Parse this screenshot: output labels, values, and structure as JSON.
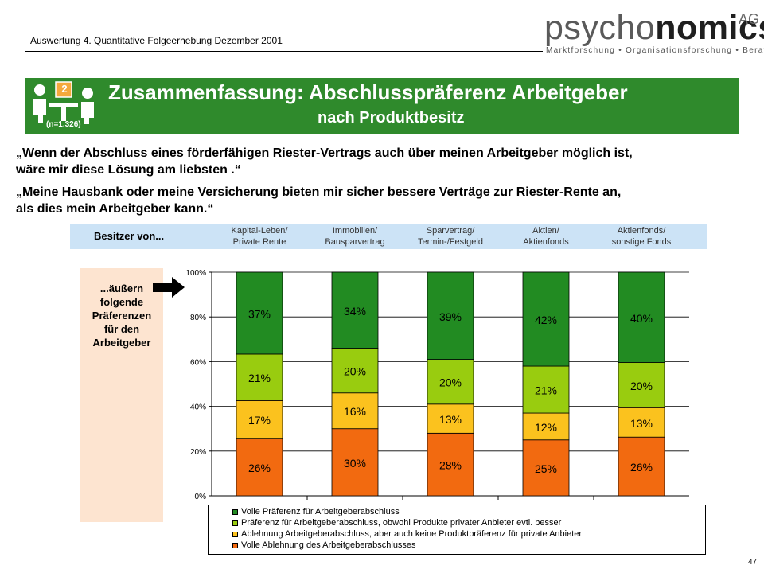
{
  "header": {
    "text": "Auswertung 4. Quantitative Folgeerhebung Dezember 2001"
  },
  "logo": {
    "word_a": "psycho",
    "word_b": "nomics",
    "ag": "AG",
    "tagline": "Marktforschung • Organisationsforschung • Beratung"
  },
  "banner": {
    "title": "Zusammenfassung: Abschlusspräferenz Arbeitgeber",
    "subtitle": "nach Produktbesitz",
    "icon_number": "2",
    "n_label": "(n=1.326)",
    "icon": "meeting-people-icon",
    "color": "#2f8a2c"
  },
  "quotes": [
    {
      "line1": "„Wenn der Abschluss eines förderfähigen Riester-Vertrags auch über meinen Arbeitgeber möglich ist,",
      "line2": "wäre mir diese Lösung am liebsten .“"
    },
    {
      "line1": "„Meine Hausbank oder meine Versicherung bieten mir sicher bessere Verträge zur Riester-Rente an,",
      "line2": "als dies mein Arbeitgeber kann.“"
    }
  ],
  "category_row": {
    "label": "Besitzer von..."
  },
  "side_box": {
    "lines": [
      "...äußern",
      "folgende",
      "Präferenzen",
      "für den",
      "Arbeitgeber"
    ],
    "arrow_icon": "arrow-right-icon"
  },
  "chart_data": {
    "type": "bar",
    "stacked": true,
    "percent_stacked": true,
    "categories": [
      [
        "Kapital-Leben/",
        "Private Rente"
      ],
      [
        "Immobilien/",
        "Bausparvertrag"
      ],
      [
        "Sparvertrag/",
        "Termin-/Festgeld"
      ],
      [
        "Aktien/",
        "Aktienfonds"
      ],
      [
        "Aktienfonds/",
        "sonstige Fonds"
      ]
    ],
    "series": [
      {
        "name": "Volle Ablehnung des Arbeitgeberabschlusses",
        "color": "#f26a10",
        "values": [
          26,
          30,
          28,
          25,
          26
        ]
      },
      {
        "name": "Ablehnung Arbeitgeberabschluss, aber auch keine Produktpräferenz für private Anbieter",
        "color": "#fbc21e",
        "values": [
          17,
          16,
          13,
          12,
          13
        ]
      },
      {
        "name": "Präferenz für Arbeitgeberabschluss, obwohl Produkte privater Anbieter evtl. besser",
        "color": "#99cc0f",
        "values": [
          21,
          20,
          20,
          21,
          20
        ]
      },
      {
        "name": "Volle Präferenz für Arbeitgeberabschluss",
        "color": "#228b22",
        "values": [
          37,
          34,
          39,
          42,
          40
        ]
      }
    ],
    "yticks": [
      "0%",
      "20%",
      "40%",
      "60%",
      "80%",
      "100%"
    ],
    "ylim": [
      0,
      100
    ],
    "grid": true,
    "legend_position": "bottom",
    "legend_order": [
      3,
      2,
      1,
      0
    ]
  },
  "page_number": "47"
}
